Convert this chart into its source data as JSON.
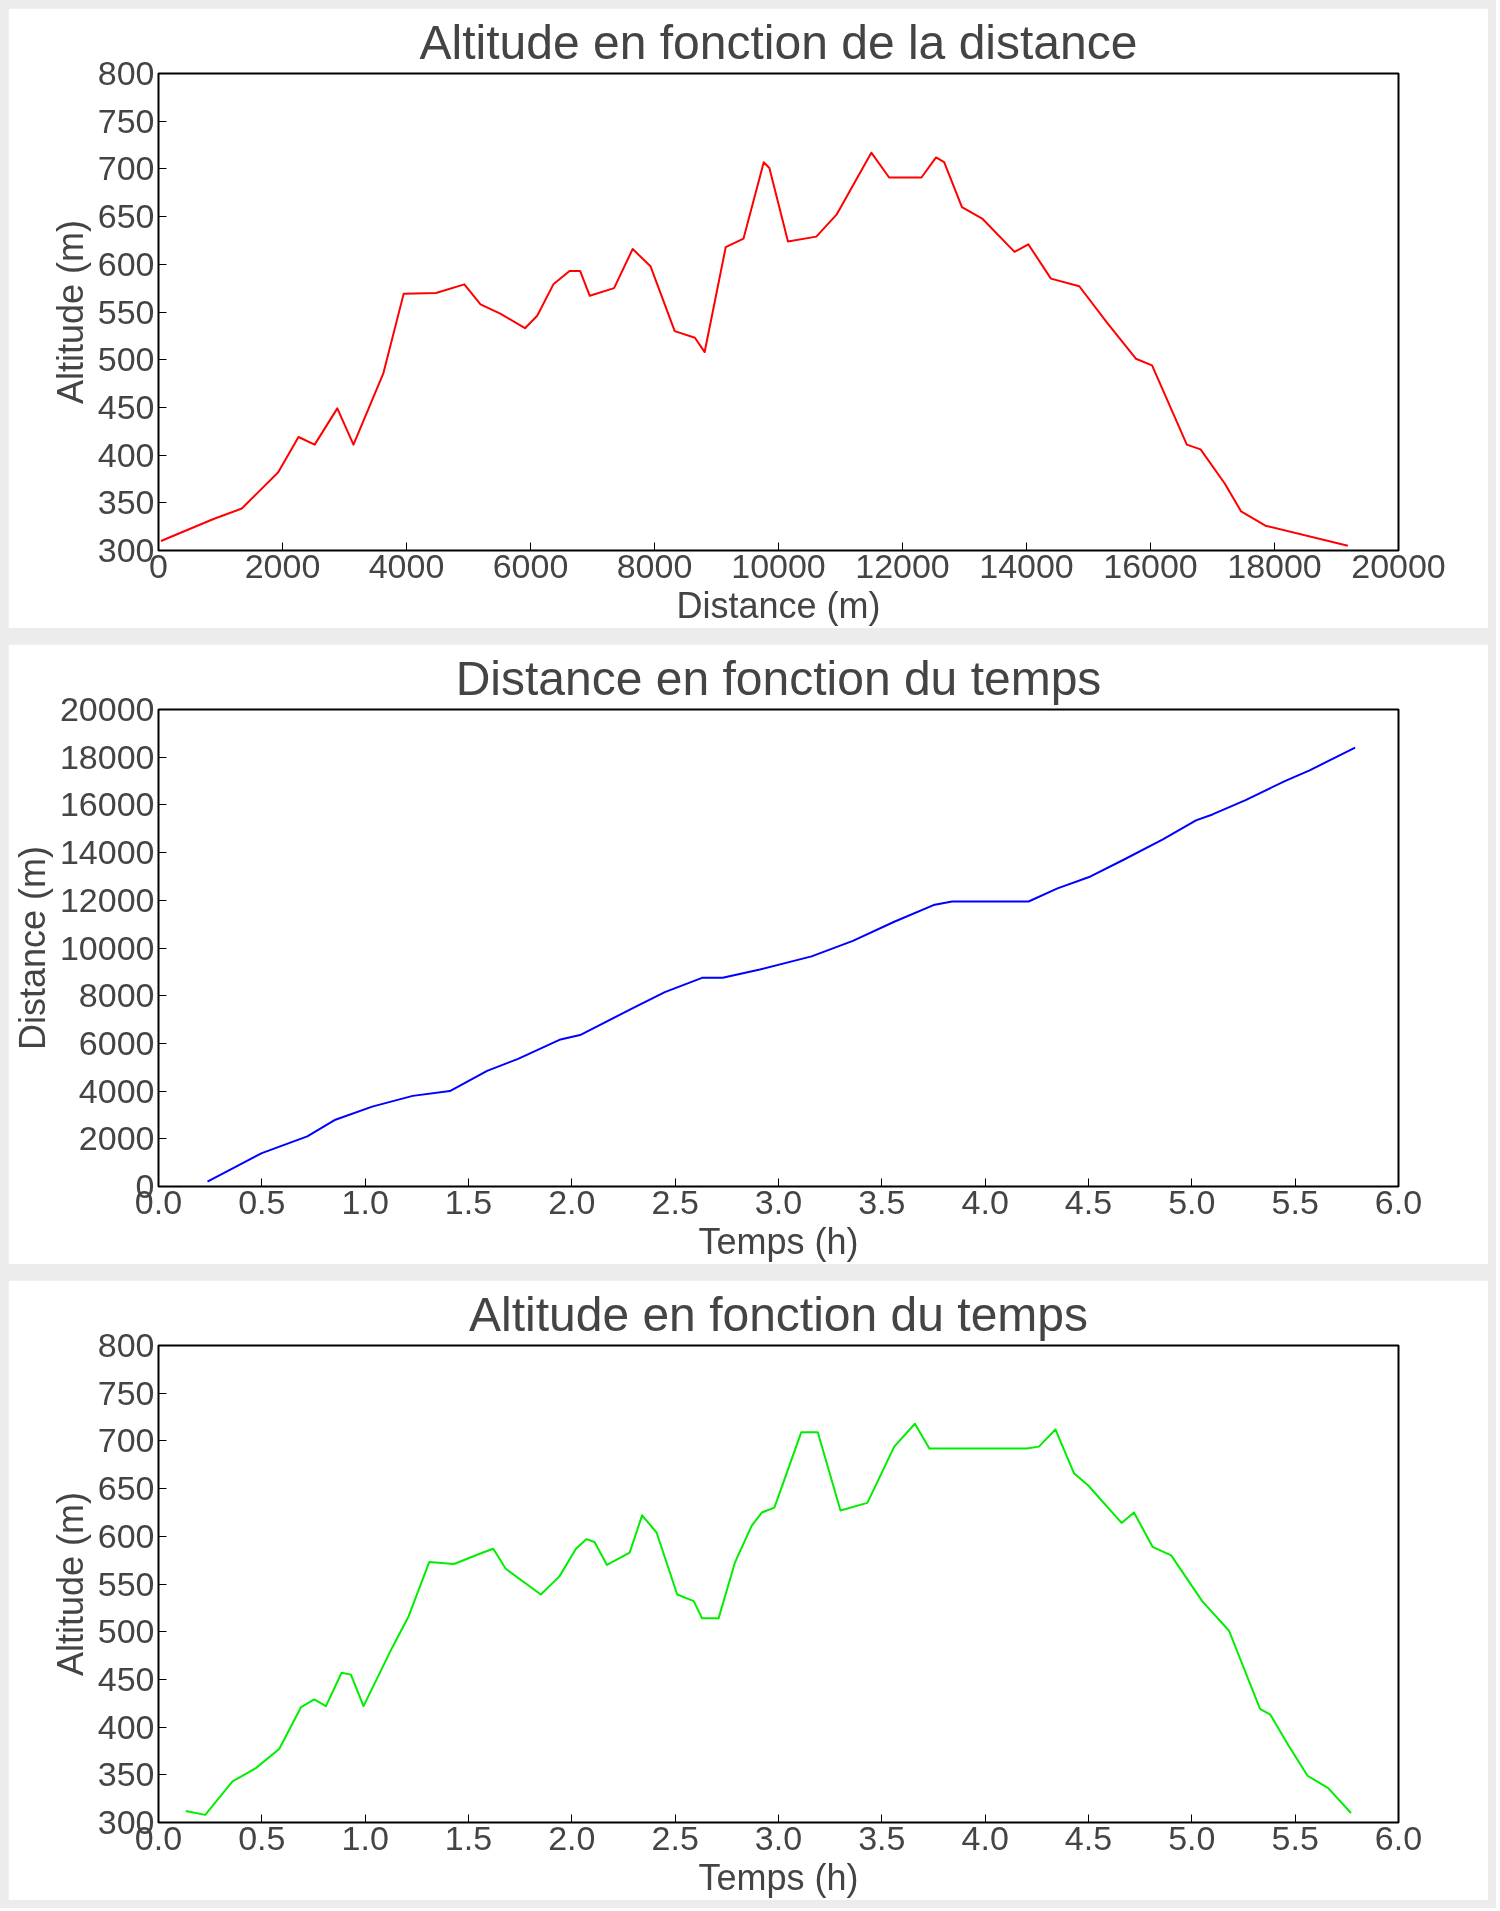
{
  "chart_data": [
    {
      "type": "line",
      "title": "Altitude en fonction de la distance",
      "xlabel": "Distance (m)",
      "ylabel": "Altitude (m)",
      "xlim": [
        0,
        20000
      ],
      "ylim": [
        300,
        800
      ],
      "xticks": [
        0,
        2000,
        4000,
        6000,
        8000,
        10000,
        12000,
        14000,
        16000,
        18000,
        20000
      ],
      "yticks": [
        300,
        350,
        400,
        450,
        500,
        550,
        600,
        650,
        700,
        750,
        800
      ],
      "grid": false,
      "x": [
        40,
        887,
        1344,
        1931,
        2258,
        2519,
        2884,
        3145,
        3628,
        3954,
        4476,
        4933,
        5194,
        5520,
        5912,
        6108,
        6369,
        6630,
        6800,
        6956,
        7348,
        7648,
        7935,
        8326,
        8652,
        8809,
        9149,
        9436,
        9762,
        9853,
        10153,
        10610,
        10936,
        11497,
        11784,
        12306,
        12541,
        12672,
        12959,
        13285,
        13807,
        14029,
        14394,
        14851,
        15308,
        15764,
        16025,
        16586,
        16808,
        17200,
        17461,
        17853,
        19183
      ],
      "series": [
        {
          "color": "#ff0000",
          "values": [
            310,
            333,
            344,
            382,
            419,
            411,
            449,
            411,
            486,
            569,
            570,
            579,
            558,
            548,
            533,
            546,
            579,
            593,
            593,
            567,
            575,
            616,
            598,
            530,
            523,
            508,
            618,
            627,
            707,
            701,
            624,
            629,
            652,
            717,
            691,
            691,
            712,
            707,
            660,
            648,
            613,
            621,
            585,
            577,
            538,
            501,
            494,
            411,
            406,
            370,
            341,
            326,
            305
          ]
        }
      ]
    },
    {
      "type": "line",
      "title": "Distance en fonction du temps",
      "xlabel": "Temps (h)",
      "ylabel": "Distance (m)",
      "xlim": [
        0,
        6
      ],
      "ylim": [
        0,
        20000
      ],
      "xticks": [
        {
          "value": 0,
          "label": "0.0"
        },
        0.5,
        {
          "value": 1,
          "label": "1.0"
        },
        1.5,
        {
          "value": 2,
          "label": "2.0"
        },
        2.5,
        {
          "value": 3,
          "label": "3.0"
        },
        3.5,
        {
          "value": 4,
          "label": "4.0"
        },
        4.5,
        {
          "value": 5,
          "label": "5.0"
        },
        5.5,
        {
          "value": 6,
          "label": "6.0"
        }
      ],
      "yticks": [
        0,
        2000,
        4000,
        6000,
        8000,
        10000,
        12000,
        14000,
        16000,
        18000,
        20000
      ],
      "grid": false,
      "x": [
        0.237,
        0.5,
        0.72,
        0.856,
        1.034,
        1.23,
        1.41,
        1.59,
        1.74,
        1.94,
        2.04,
        2.3,
        2.45,
        2.63,
        2.73,
        2.91,
        3.16,
        3.36,
        3.56,
        3.75,
        3.84,
        4.21,
        4.35,
        4.51,
        4.67,
        4.86,
        5.02,
        5.1,
        5.26,
        5.45,
        5.57,
        5.79
      ],
      "series": [
        {
          "color": "#0000ff",
          "values": [
            200,
            1400,
            2100,
            2800,
            3350,
            3800,
            4000,
            4850,
            5350,
            6150,
            6350,
            7500,
            8150,
            8750,
            8750,
            9100,
            9650,
            10300,
            11100,
            11800,
            11950,
            11950,
            12500,
            13000,
            13700,
            14550,
            15350,
            15600,
            16200,
            17000,
            17450,
            18400
          ]
        }
      ]
    },
    {
      "type": "line",
      "title": "Altitude en fonction du temps",
      "xlabel": "Temps (h)",
      "ylabel": "Altitude (m)",
      "xlim": [
        0,
        6
      ],
      "ylim": [
        300,
        800
      ],
      "xticks": [
        {
          "value": 0,
          "label": "0.0"
        },
        0.5,
        {
          "value": 1,
          "label": "1.0"
        },
        1.5,
        {
          "value": 2,
          "label": "2.0"
        },
        2.5,
        {
          "value": 3,
          "label": "3.0"
        },
        3.5,
        {
          "value": 4,
          "label": "4.0"
        },
        4.5,
        {
          "value": 5,
          "label": "5.0"
        },
        5.5,
        {
          "value": 6,
          "label": "6.0"
        }
      ],
      "yticks": [
        300,
        350,
        400,
        450,
        500,
        550,
        600,
        650,
        700,
        750,
        800
      ],
      "grid": false,
      "x": [
        0.132,
        0.226,
        0.358,
        0.471,
        0.584,
        0.69,
        0.754,
        0.81,
        0.886,
        0.931,
        0.992,
        1.13,
        1.21,
        1.31,
        1.43,
        1.57,
        1.62,
        1.68,
        1.85,
        1.94,
        2.02,
        2.07,
        2.11,
        2.17,
        2.28,
        2.34,
        2.41,
        2.51,
        2.59,
        2.63,
        2.71,
        2.79,
        2.87,
        2.92,
        2.98,
        3.11,
        3.19,
        3.3,
        3.43,
        3.56,
        3.66,
        3.73,
        4.2,
        4.26,
        4.34,
        4.43,
        4.5,
        4.66,
        4.72,
        4.81,
        4.9,
        5.05,
        5.18,
        5.33,
        5.38,
        5.47,
        5.56,
        5.66,
        5.77
      ],
      "series": [
        {
          "color": "#00ee00",
          "values": [
            312,
            308,
            343,
            357,
            377,
            421,
            429,
            422,
            457,
            455,
            422,
            483,
            516,
            573,
            571,
            583,
            587,
            566,
            539,
            558,
            587,
            597,
            594,
            570,
            583,
            622,
            604,
            539,
            532,
            514,
            514,
            573,
            611,
            625,
            630,
            709,
            709,
            627,
            635,
            694,
            718,
            692,
            692,
            694,
            712,
            666,
            653,
            614,
            625,
            589,
            580,
            532,
            501,
            419,
            413,
            380,
            349,
            336,
            310
          ]
        }
      ]
    }
  ]
}
